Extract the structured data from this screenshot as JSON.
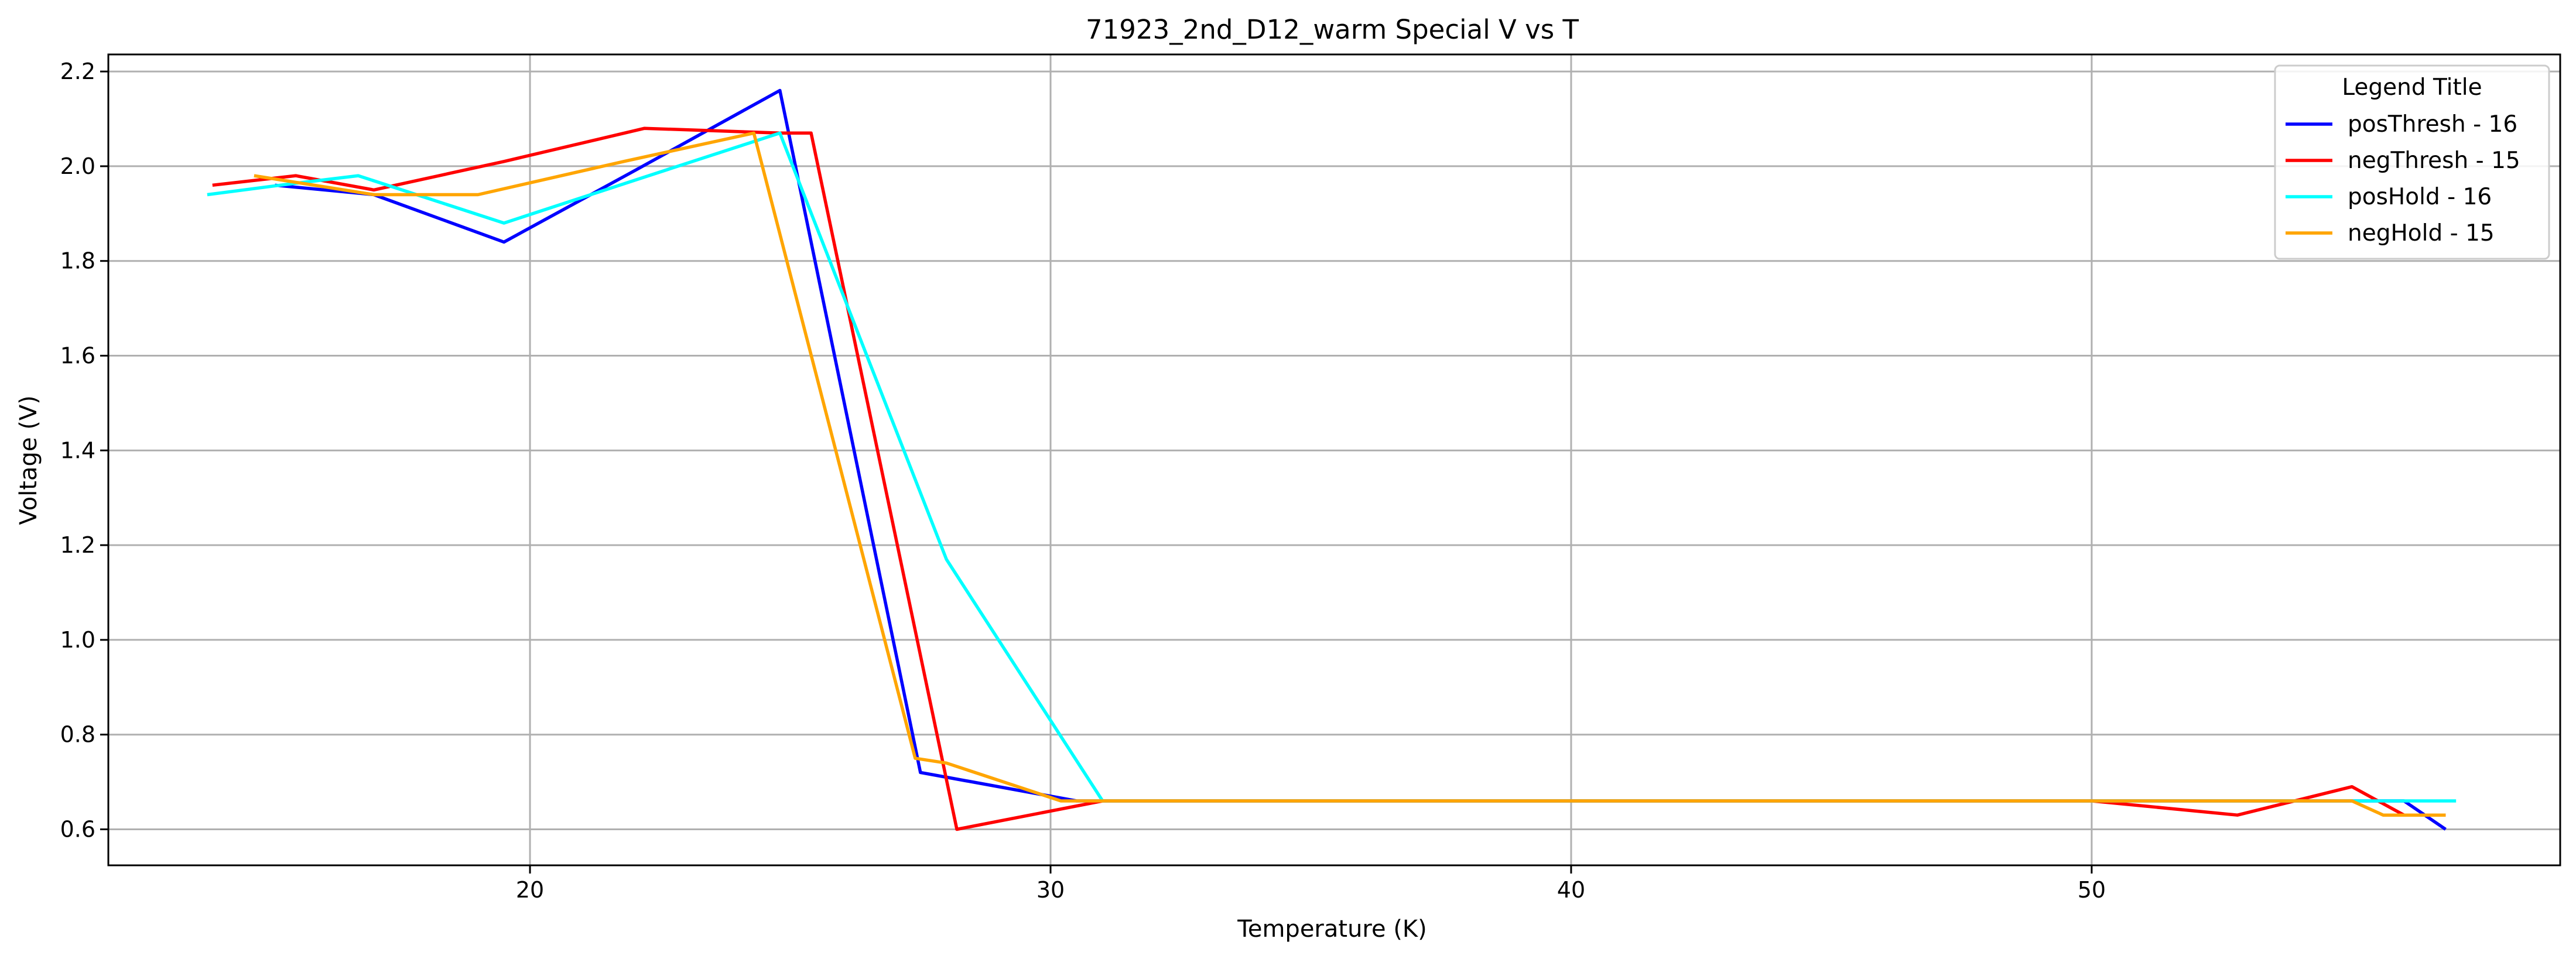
{
  "chart_data": {
    "type": "line",
    "title": "71923_2nd_D12_warm Special V vs T",
    "xlabel": "Temperature (K)",
    "ylabel": "Voltage (V)",
    "xlim": [
      11.9,
      59.0
    ],
    "ylim": [
      0.524,
      2.236
    ],
    "xticks": [
      20,
      30,
      40,
      50
    ],
    "xtick_labels": [
      "20",
      "30",
      "40",
      "50"
    ],
    "yticks": [
      0.6,
      0.8,
      1.0,
      1.2,
      1.4,
      1.6,
      1.8,
      2.0,
      2.2
    ],
    "ytick_labels": [
      "0.6",
      "0.8",
      "1.0",
      "1.2",
      "1.4",
      "1.6",
      "1.8",
      "2.0",
      "2.2"
    ],
    "grid": true,
    "legend": {
      "title": "Legend Title",
      "placement": "top-right"
    },
    "series": [
      {
        "name": "posThresh - 16",
        "color": "#0000ff",
        "points": [
          [
            15.1,
            1.96
          ],
          [
            17.0,
            1.94
          ],
          [
            19.5,
            1.84
          ],
          [
            22.0,
            1.99
          ],
          [
            24.8,
            2.16
          ],
          [
            27.5,
            0.72
          ],
          [
            28.0,
            0.71
          ],
          [
            30.5,
            0.66
          ],
          [
            50.0,
            0.66
          ],
          [
            55.0,
            0.66
          ],
          [
            56.0,
            0.66
          ],
          [
            56.8,
            0.6
          ]
        ]
      },
      {
        "name": "negThresh - 15",
        "color": "#ff0000",
        "points": [
          [
            13.9,
            1.96
          ],
          [
            15.5,
            1.98
          ],
          [
            17.0,
            1.95
          ],
          [
            19.5,
            2.01
          ],
          [
            22.2,
            2.08
          ],
          [
            24.8,
            2.07
          ],
          [
            25.4,
            2.07
          ],
          [
            28.2,
            0.6
          ],
          [
            31.0,
            0.66
          ],
          [
            50.0,
            0.66
          ],
          [
            52.8,
            0.63
          ],
          [
            55.0,
            0.69
          ],
          [
            56.0,
            0.63
          ],
          [
            56.8,
            0.63
          ]
        ]
      },
      {
        "name": "posHold - 16",
        "color": "#00ffff",
        "points": [
          [
            13.8,
            1.94
          ],
          [
            15.2,
            1.96
          ],
          [
            16.7,
            1.98
          ],
          [
            19.5,
            1.88
          ],
          [
            22.0,
            1.97
          ],
          [
            24.8,
            2.07
          ],
          [
            28.0,
            1.17
          ],
          [
            31.0,
            0.66
          ],
          [
            50.0,
            0.66
          ],
          [
            55.0,
            0.66
          ],
          [
            57.0,
            0.66
          ]
        ]
      },
      {
        "name": "negHold - 15",
        "color": "#ffa500",
        "points": [
          [
            14.7,
            1.98
          ],
          [
            17.0,
            1.94
          ],
          [
            19.0,
            1.94
          ],
          [
            21.8,
            2.01
          ],
          [
            24.3,
            2.07
          ],
          [
            27.4,
            0.75
          ],
          [
            28.0,
            0.74
          ],
          [
            30.2,
            0.66
          ],
          [
            50.0,
            0.66
          ],
          [
            55.0,
            0.66
          ],
          [
            55.6,
            0.63
          ],
          [
            56.8,
            0.63
          ]
        ]
      }
    ]
  }
}
